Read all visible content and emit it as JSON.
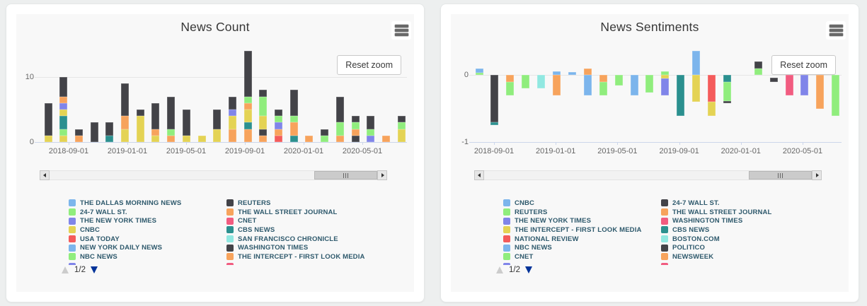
{
  "palette": {
    "blue": "#7cb5ec",
    "dark": "#434348",
    "green": "#90ed7d",
    "orange": "#f7a35c",
    "purple": "#8085e9",
    "pink": "#f15c80",
    "yellow": "#e4d354",
    "teal": "#2b908f",
    "red": "#f45b5b",
    "cyan": "#91e8e1",
    "axis_line": "#ccd6eb",
    "gridline": "#e6e6e6",
    "axis_text": "#666666",
    "legend_text": "#2e596c",
    "pager_active": "#003399",
    "pager_inactive": "#cccccc"
  },
  "chart_data": [
    {
      "type": "bar",
      "stacked": true,
      "title": "News Count",
      "reset_zoom_label": "Reset zoom",
      "ylim": [
        0,
        14.8
      ],
      "y_ticks": [
        {
          "label": "10",
          "units": 10
        },
        {
          "label": "0",
          "units": 0
        }
      ],
      "tick_labels": [
        "2018-09-01",
        "2019-01-01",
        "2019-05-01",
        "2019-09-01",
        "2020-01-01",
        "2020-05-01"
      ],
      "bars": [
        {
          "month": "2018-08",
          "segments": [
            [
              "yellow",
              1
            ],
            [
              "dark",
              5
            ]
          ]
        },
        {
          "month": "2018-09",
          "segments": [
            [
              "yellow",
              1
            ],
            [
              "green",
              1
            ],
            [
              "teal",
              2
            ],
            [
              "yellow",
              1
            ],
            [
              "purple",
              1
            ],
            [
              "orange",
              1
            ],
            [
              "dark",
              3
            ]
          ]
        },
        {
          "month": "2018-10",
          "segments": [
            [
              "orange",
              1
            ],
            [
              "dark",
              1
            ]
          ]
        },
        {
          "month": "2018-11",
          "segments": [
            [
              "dark",
              3
            ]
          ]
        },
        {
          "month": "2018-12",
          "segments": [
            [
              "teal",
              1
            ],
            [
              "dark",
              2
            ]
          ]
        },
        {
          "month": "2019-01",
          "segments": [
            [
              "yellow",
              2
            ],
            [
              "orange",
              2
            ],
            [
              "dark",
              5
            ]
          ]
        },
        {
          "month": "2019-02",
          "segments": [
            [
              "yellow",
              4
            ],
            [
              "dark",
              1
            ]
          ]
        },
        {
          "month": "2019-03",
          "segments": [
            [
              "yellow",
              1
            ],
            [
              "orange",
              1
            ],
            [
              "dark",
              4
            ]
          ]
        },
        {
          "month": "2019-04",
          "segments": [
            [
              "orange",
              1
            ],
            [
              "green",
              1
            ],
            [
              "dark",
              5
            ]
          ]
        },
        {
          "month": "2019-05",
          "segments": [
            [
              "yellow",
              1
            ],
            [
              "dark",
              4
            ]
          ]
        },
        {
          "month": "2019-06",
          "segments": [
            [
              "yellow",
              1
            ]
          ]
        },
        {
          "month": "2019-07",
          "segments": [
            [
              "yellow",
              2
            ],
            [
              "dark",
              3
            ]
          ]
        },
        {
          "month": "2019-08",
          "segments": [
            [
              "orange",
              2
            ],
            [
              "yellow",
              2
            ],
            [
              "purple",
              1
            ],
            [
              "dark",
              2
            ]
          ]
        },
        {
          "month": "2019-09",
          "segments": [
            [
              "orange",
              2
            ],
            [
              "teal",
              1
            ],
            [
              "yellow",
              2
            ],
            [
              "orange",
              1
            ],
            [
              "green",
              1
            ],
            [
              "dark",
              7
            ]
          ]
        },
        {
          "month": "2019-10",
          "segments": [
            [
              "orange",
              1
            ],
            [
              "dark",
              1
            ],
            [
              "yellow",
              2
            ],
            [
              "green",
              3
            ],
            [
              "dark",
              1
            ]
          ]
        },
        {
          "month": "2019-11",
          "segments": [
            [
              "red",
              1
            ],
            [
              "orange",
              1
            ],
            [
              "purple",
              1
            ],
            [
              "green",
              1
            ],
            [
              "dark",
              1
            ]
          ]
        },
        {
          "month": "2019-12",
          "segments": [
            [
              "teal",
              1
            ],
            [
              "orange",
              2
            ],
            [
              "green",
              1
            ],
            [
              "dark",
              4
            ]
          ]
        },
        {
          "month": "2020-01",
          "segments": [
            [
              "orange",
              1
            ]
          ]
        },
        {
          "month": "2020-02",
          "segments": [
            [
              "green",
              1
            ],
            [
              "dark",
              1
            ]
          ]
        },
        {
          "month": "2020-03",
          "segments": [
            [
              "orange",
              1
            ],
            [
              "green",
              2
            ],
            [
              "dark",
              4
            ]
          ]
        },
        {
          "month": "2020-04",
          "segments": [
            [
              "dark",
              1
            ],
            [
              "orange",
              1
            ],
            [
              "green",
              1
            ],
            [
              "dark",
              1
            ]
          ]
        },
        {
          "month": "2020-05",
          "segments": [
            [
              "purple",
              1
            ],
            [
              "green",
              1
            ],
            [
              "dark",
              2
            ]
          ]
        },
        {
          "month": "2020-06",
          "segments": [
            [
              "orange",
              1
            ]
          ]
        },
        {
          "month": "2020-07",
          "segments": [
            [
              "yellow",
              2
            ],
            [
              "green",
              1
            ],
            [
              "dark",
              1
            ]
          ]
        }
      ],
      "legend": {
        "page": "1/2",
        "col1": [
          {
            "color": "blue",
            "label": "THE DALLAS MORNING NEWS"
          },
          {
            "color": "green",
            "label": "24-7 WALL ST."
          },
          {
            "color": "purple",
            "label": "THE NEW YORK TIMES"
          },
          {
            "color": "yellow",
            "label": "CNBC"
          },
          {
            "color": "red",
            "label": "USA TODAY"
          },
          {
            "color": "blue",
            "label": "NEW YORK DAILY NEWS"
          },
          {
            "color": "green",
            "label": "NBC NEWS"
          }
        ],
        "col1_peek": "purple",
        "col2": [
          {
            "color": "dark",
            "label": "REUTERS"
          },
          {
            "color": "orange",
            "label": "THE WALL STREET JOURNAL"
          },
          {
            "color": "pink",
            "label": "CNET"
          },
          {
            "color": "teal",
            "label": "CBS NEWS"
          },
          {
            "color": "cyan",
            "label": "SAN FRANCISCO CHRONICLE"
          },
          {
            "color": "dark",
            "label": "WASHINGTON TIMES"
          },
          {
            "color": "orange",
            "label": "THE INTERCEPT - FIRST LOOK MEDIA"
          }
        ],
        "col2_peek": "pink"
      }
    },
    {
      "type": "bar",
      "stacked": true,
      "title": "News Sentiments",
      "reset_zoom_label": "Reset zoom",
      "ylim": [
        -1,
        0.43
      ],
      "y_ticks": [
        {
          "label": "0",
          "units": 0
        },
        {
          "label": "-1",
          "units": -1
        }
      ],
      "tick_labels": [
        "2018-09-01",
        "2019-01-01",
        "2019-05-01",
        "2019-09-01",
        "2020-01-01",
        "2020-05-01"
      ],
      "bars": [
        {
          "month": "2018-08",
          "pos": [
            [
              "green",
              0.03
            ],
            [
              "blue",
              0.07
            ]
          ]
        },
        {
          "month": "2018-09",
          "neg": [
            [
              "dark",
              0.7
            ],
            [
              "teal",
              0.05
            ]
          ]
        },
        {
          "month": "2018-10",
          "neg": [
            [
              "orange",
              0.11
            ],
            [
              "green",
              0.19
            ]
          ]
        },
        {
          "month": "2018-11",
          "neg": [
            [
              "green",
              0.2
            ]
          ]
        },
        {
          "month": "2018-12",
          "neg": [
            [
              "cyan",
              0.2
            ]
          ]
        },
        {
          "month": "2019-01",
          "pos": [
            [
              "blue",
              0.05
            ]
          ],
          "neg": [
            [
              "orange",
              0.3
            ]
          ]
        },
        {
          "month": "2019-02",
          "pos": [
            [
              "blue",
              0.04
            ]
          ]
        },
        {
          "month": "2019-03",
          "pos": [
            [
              "orange",
              0.1
            ]
          ],
          "neg": [
            [
              "blue",
              0.3
            ]
          ]
        },
        {
          "month": "2019-04",
          "neg": [
            [
              "orange",
              0.11
            ],
            [
              "green",
              0.19
            ]
          ]
        },
        {
          "month": "2019-05",
          "neg": [
            [
              "green",
              0.16
            ]
          ]
        },
        {
          "month": "2019-06",
          "neg": [
            [
              "blue",
              0.3
            ]
          ]
        },
        {
          "month": "2019-07",
          "neg": [
            [
              "green",
              0.26
            ]
          ]
        },
        {
          "month": "2019-08",
          "pos": [
            [
              "green",
              0.05
            ]
          ],
          "neg": [
            [
              "yellow",
              0.05
            ],
            [
              "purple",
              0.26
            ]
          ]
        },
        {
          "month": "2019-09",
          "neg": [
            [
              "teal",
              0.61
            ]
          ]
        },
        {
          "month": "2019-10",
          "pos": [
            [
              "blue",
              0.36
            ]
          ],
          "neg": [
            [
              "yellow",
              0.4
            ]
          ]
        },
        {
          "month": "2019-11",
          "neg": [
            [
              "red",
              0.4
            ],
            [
              "yellow",
              0.21
            ]
          ]
        },
        {
          "month": "2019-12",
          "neg": [
            [
              "teal",
              0.1
            ],
            [
              "green",
              0.29
            ],
            [
              "dark",
              0.03
            ]
          ]
        },
        {
          "month": "2020-01"
        },
        {
          "month": "2020-02",
          "pos": [
            [
              "green",
              0.1
            ],
            [
              "dark",
              0.1
            ]
          ]
        },
        {
          "month": "2020-03",
          "neg_offset": 0.04,
          "neg": [
            [
              "dark",
              0.07
            ]
          ]
        },
        {
          "month": "2020-04",
          "neg": [
            [
              "pink",
              0.3
            ]
          ]
        },
        {
          "month": "2020-05",
          "neg": [
            [
              "purple",
              0.3
            ]
          ]
        },
        {
          "month": "2020-06",
          "neg": [
            [
              "orange",
              0.51
            ]
          ]
        },
        {
          "month": "2020-07",
          "neg": [
            [
              "green",
              0.61
            ]
          ]
        }
      ],
      "legend": {
        "page": "1/2",
        "col1": [
          {
            "color": "blue",
            "label": "CNBC"
          },
          {
            "color": "green",
            "label": "REUTERS"
          },
          {
            "color": "purple",
            "label": "THE NEW YORK TIMES"
          },
          {
            "color": "yellow",
            "label": "THE INTERCEPT - FIRST LOOK MEDIA"
          },
          {
            "color": "red",
            "label": "NATIONAL REVIEW"
          },
          {
            "color": "blue",
            "label": "NBC NEWS"
          },
          {
            "color": "green",
            "label": "CNET"
          }
        ],
        "col1_peek": "purple",
        "col2": [
          {
            "color": "dark",
            "label": "24-7 WALL ST."
          },
          {
            "color": "orange",
            "label": "THE WALL STREET JOURNAL"
          },
          {
            "color": "pink",
            "label": "WASHINGTON TIMES"
          },
          {
            "color": "teal",
            "label": "CBS NEWS"
          },
          {
            "color": "cyan",
            "label": "BOSTON.COM"
          },
          {
            "color": "dark",
            "label": "POLITICO"
          },
          {
            "color": "orange",
            "label": "NEWSWEEK"
          }
        ],
        "col2_peek": "pink"
      }
    }
  ]
}
